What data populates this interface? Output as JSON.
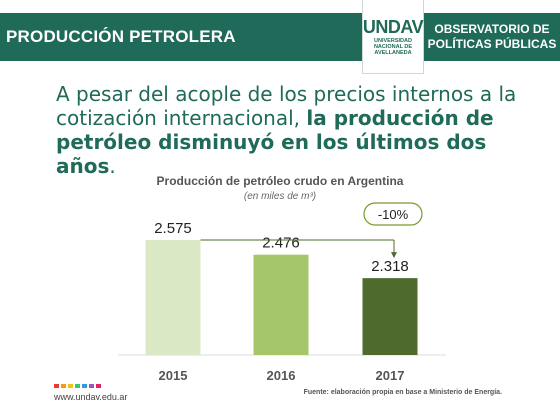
{
  "header": {
    "title": "PRODUCCIÓN PETROLERA",
    "logo_main": "UNDAV",
    "logo_sub": [
      "UNIVERSIDAD",
      "NACIONAL DE",
      "AVELLANEDA"
    ],
    "observatory_line1": "OBSERVATORIO DE",
    "observatory_line2": "POLÍTICAS PÚBLICAS"
  },
  "headline": {
    "normal": "A pesar del acople de los precios internos a la cotización internacional, ",
    "bold": "la producción de petróleo disminuyó en los últimos dos años",
    "end": "."
  },
  "chart_data": {
    "type": "bar",
    "title": "Producción de petróleo crudo en Argentina",
    "subtitle": "(en miles de m³)",
    "categories": [
      "2015",
      "2016",
      "2017"
    ],
    "values": [
      2575,
      2476,
      2318
    ],
    "value_labels": [
      "2.575",
      "2.476",
      "2.318"
    ],
    "colors": [
      "#dbe8c6",
      "#a6c66a",
      "#4e6b2d"
    ],
    "annotation": "-10%",
    "grid": false
  },
  "footer": {
    "url": "www.undav.edu.ar",
    "source": "Fuente: elaboración propia en base a Ministerio de Energía.",
    "dot_colors": [
      "#e53935",
      "#f39c12",
      "#f1c40f",
      "#2ecc71",
      "#3498db",
      "#9b59b6",
      "#e91e63"
    ]
  },
  "colors": {
    "brand": "#1f6a58",
    "accent": "#7a9a2e"
  }
}
